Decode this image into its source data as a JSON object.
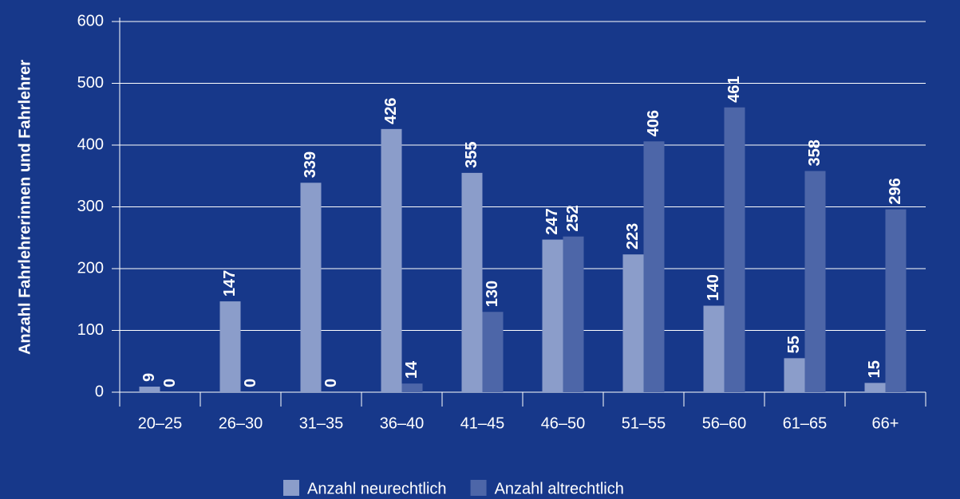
{
  "chart_data": {
    "type": "bar",
    "y_label": "Anzahl Fahrlehrerinnen und Fahrlehrer",
    "categories": [
      "20–25",
      "26–30",
      "31–35",
      "36–40",
      "41–45",
      "46–50",
      "51–55",
      "56–60",
      "61–65",
      "66+"
    ],
    "series": [
      {
        "name": "Anzahl neurechtlich",
        "color": "#8b9dca",
        "values": [
          9,
          147,
          339,
          426,
          355,
          247,
          223,
          140,
          55,
          15
        ]
      },
      {
        "name": "Anzahl altrechtlich",
        "color": "#4d66a8",
        "values": [
          0,
          0,
          0,
          14,
          130,
          252,
          406,
          461,
          358,
          296
        ]
      }
    ],
    "ylim": [
      0,
      600
    ],
    "yticks": [
      0,
      100,
      200,
      300,
      400,
      500,
      600
    ],
    "grid": true,
    "legend": "bottom"
  }
}
